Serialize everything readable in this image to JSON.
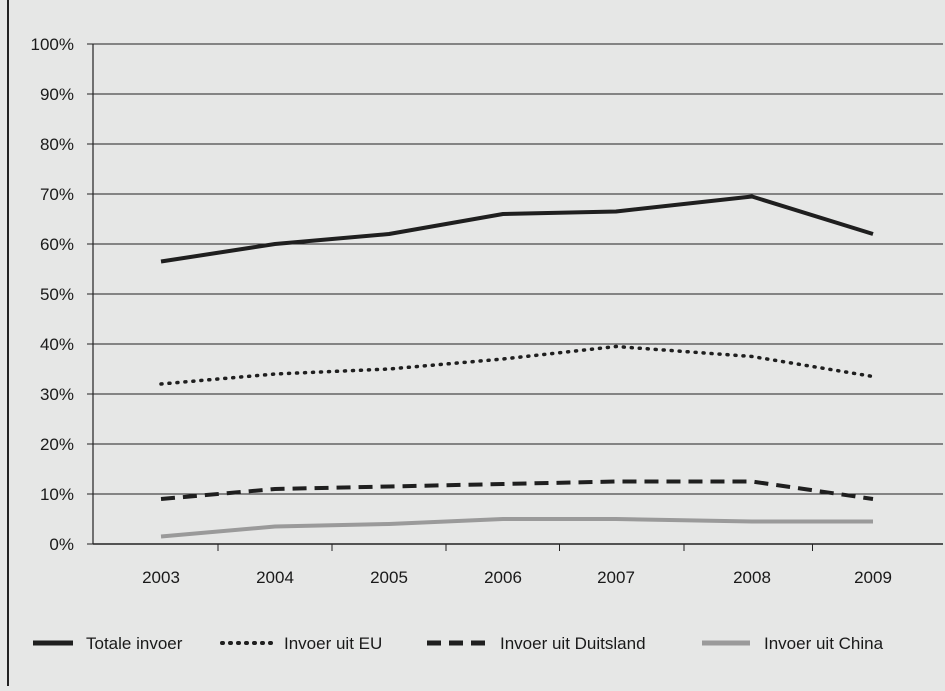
{
  "chart_data": {
    "type": "line",
    "title": "",
    "xlabel": "",
    "ylabel": "",
    "categories": [
      "2003",
      "2004",
      "2005",
      "2006",
      "2007",
      "2008",
      "2009"
    ],
    "y_ticks": [
      "0%",
      "10%",
      "20%",
      "30%",
      "40%",
      "50%",
      "60%",
      "70%",
      "80%",
      "90%",
      "100%"
    ],
    "ylim": [
      0,
      100
    ],
    "grid": true,
    "legend_position": "bottom",
    "series": [
      {
        "name": "Totale invoer",
        "values": [
          56.5,
          60,
          62,
          66,
          66.5,
          69.5,
          62
        ],
        "color": "#1f1f1f",
        "style": "solid"
      },
      {
        "name": "Invoer uit EU",
        "values": [
          32,
          34,
          35,
          37,
          39.5,
          37.5,
          33.5
        ],
        "color": "#1f1f1f",
        "style": "dotted"
      },
      {
        "name": "Invoer uit Duitsland",
        "values": [
          9,
          11,
          11.5,
          12,
          12.5,
          12.5,
          9
        ],
        "color": "#1f1f1f",
        "style": "dashed"
      },
      {
        "name": "Invoer uit China",
        "values": [
          1.5,
          3.5,
          4,
          5,
          5,
          4.5,
          4.5
        ],
        "color": "#9a9a9a",
        "style": "solid"
      }
    ]
  }
}
